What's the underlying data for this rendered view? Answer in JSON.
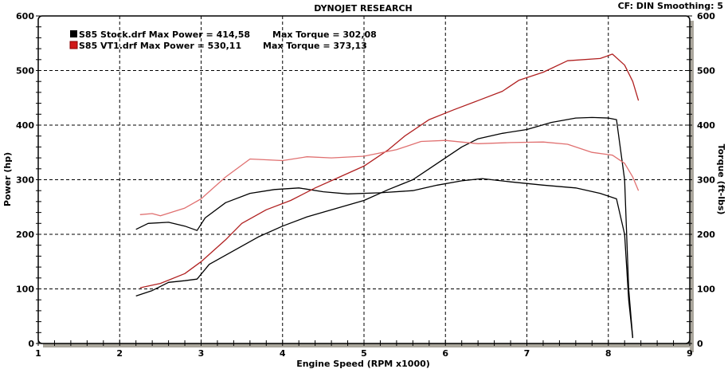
{
  "header": {
    "title": "DYNOJET RESEARCH",
    "info": "CF: DIN  Smoothing: 5"
  },
  "legend": [
    {
      "label": "S85 Stock.drf Max Power = 414,58",
      "torque": "Max Torque = 302,08",
      "color": "#000000"
    },
    {
      "label": "S85 VT1.drf Max Power = 530,11",
      "torque": "Max Torque = 373,13",
      "color": "#d01818"
    }
  ],
  "chart_data": {
    "type": "line",
    "title": "DYNOJET RESEARCH",
    "xlabel": "Engine Speed (RPM x1000)",
    "ylabel": "Power (hp)",
    "y2label": "Torque (ft-lbs)",
    "xlim": [
      1,
      9
    ],
    "ylim": [
      0,
      600
    ],
    "y2lim": [
      0,
      600
    ],
    "xticks": [
      "1",
      "2",
      "3",
      "4",
      "5",
      "6",
      "7",
      "8",
      "9"
    ],
    "yticks": [
      "0",
      "100",
      "200",
      "300",
      "400",
      "500",
      "600"
    ],
    "grid": true,
    "legend_position": "top-left",
    "series": [
      {
        "name": "S85 Stock.drf",
        "measure": "power",
        "color": "#000000",
        "points": [
          [
            2.2,
            87
          ],
          [
            2.4,
            97
          ],
          [
            2.6,
            112
          ],
          [
            2.8,
            115
          ],
          [
            2.95,
            118
          ],
          [
            3.1,
            145
          ],
          [
            3.4,
            170
          ],
          [
            3.7,
            195
          ],
          [
            4.0,
            215
          ],
          [
            4.3,
            232
          ],
          [
            4.6,
            245
          ],
          [
            5.0,
            262
          ],
          [
            5.3,
            282
          ],
          [
            5.6,
            300
          ],
          [
            5.8,
            320
          ],
          [
            6.0,
            340
          ],
          [
            6.2,
            360
          ],
          [
            6.4,
            375
          ],
          [
            6.7,
            385
          ],
          [
            7.0,
            392
          ],
          [
            7.3,
            405
          ],
          [
            7.6,
            413
          ],
          [
            7.8,
            414
          ],
          [
            8.0,
            413
          ],
          [
            8.1,
            410
          ],
          [
            8.2,
            300
          ],
          [
            8.25,
            100
          ],
          [
            8.3,
            10
          ]
        ]
      },
      {
        "name": "S85 Stock.drf",
        "measure": "torque",
        "color": "#000000",
        "points": [
          [
            2.2,
            209
          ],
          [
            2.35,
            220
          ],
          [
            2.6,
            222
          ],
          [
            2.8,
            215
          ],
          [
            2.95,
            207
          ],
          [
            3.05,
            230
          ],
          [
            3.3,
            258
          ],
          [
            3.6,
            275
          ],
          [
            3.9,
            282
          ],
          [
            4.2,
            285
          ],
          [
            4.5,
            278
          ],
          [
            4.8,
            274
          ],
          [
            5.2,
            276
          ],
          [
            5.6,
            280
          ],
          [
            5.9,
            290
          ],
          [
            6.2,
            298
          ],
          [
            6.45,
            302
          ],
          [
            6.8,
            296
          ],
          [
            7.2,
            290
          ],
          [
            7.6,
            285
          ],
          [
            7.9,
            275
          ],
          [
            8.1,
            265
          ],
          [
            8.2,
            200
          ],
          [
            8.25,
            80
          ],
          [
            8.3,
            10
          ]
        ]
      },
      {
        "name": "S85 VT1.drf",
        "measure": "power",
        "color": "#b02020",
        "points": [
          [
            2.25,
            102
          ],
          [
            2.5,
            110
          ],
          [
            2.8,
            128
          ],
          [
            3.0,
            150
          ],
          [
            3.3,
            190
          ],
          [
            3.5,
            220
          ],
          [
            3.8,
            245
          ],
          [
            4.1,
            262
          ],
          [
            4.4,
            285
          ],
          [
            4.7,
            305
          ],
          [
            5.0,
            325
          ],
          [
            5.3,
            355
          ],
          [
            5.5,
            380
          ],
          [
            5.8,
            410
          ],
          [
            6.1,
            428
          ],
          [
            6.4,
            445
          ],
          [
            6.7,
            462
          ],
          [
            6.9,
            482
          ],
          [
            7.2,
            497
          ],
          [
            7.5,
            518
          ],
          [
            7.9,
            522
          ],
          [
            8.05,
            530
          ],
          [
            8.2,
            510
          ],
          [
            8.3,
            480
          ],
          [
            8.37,
            445
          ]
        ]
      },
      {
        "name": "S85 VT1.drf",
        "measure": "torque",
        "color": "#e07070",
        "points": [
          [
            2.25,
            236
          ],
          [
            2.4,
            238
          ],
          [
            2.5,
            234
          ],
          [
            2.8,
            248
          ],
          [
            3.0,
            265
          ],
          [
            3.3,
            305
          ],
          [
            3.6,
            338
          ],
          [
            4.0,
            335
          ],
          [
            4.3,
            342
          ],
          [
            4.6,
            340
          ],
          [
            5.0,
            343
          ],
          [
            5.4,
            355
          ],
          [
            5.7,
            370
          ],
          [
            6.0,
            372
          ],
          [
            6.4,
            366
          ],
          [
            6.8,
            368
          ],
          [
            7.2,
            369
          ],
          [
            7.5,
            365
          ],
          [
            7.8,
            350
          ],
          [
            8.05,
            345
          ],
          [
            8.2,
            330
          ],
          [
            8.3,
            305
          ],
          [
            8.37,
            280
          ]
        ]
      }
    ]
  }
}
